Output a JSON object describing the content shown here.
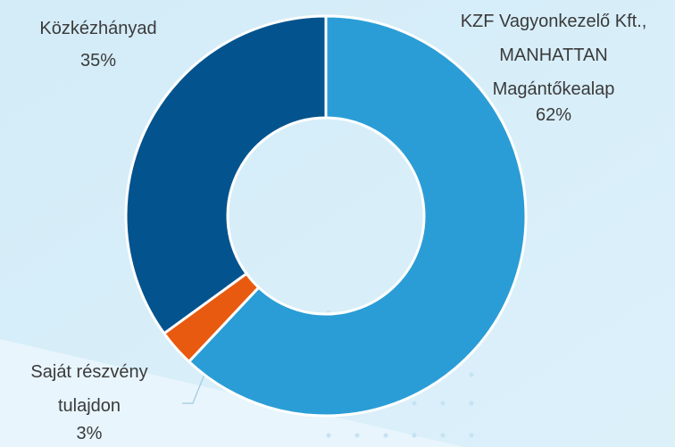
{
  "chart_data": {
    "type": "donut",
    "categories": [
      "KZF Vagyonkezelő Kft.,\nMANHATTAN\nMagántőkealap",
      "Saját részvény\ntulajdon",
      "Közkézhányad"
    ],
    "values": [
      62,
      3,
      35
    ],
    "value_labels": [
      "62%",
      "3%",
      "35%"
    ],
    "colors": [
      "#2a9dd6",
      "#e85a0f",
      "#03538e"
    ]
  }
}
